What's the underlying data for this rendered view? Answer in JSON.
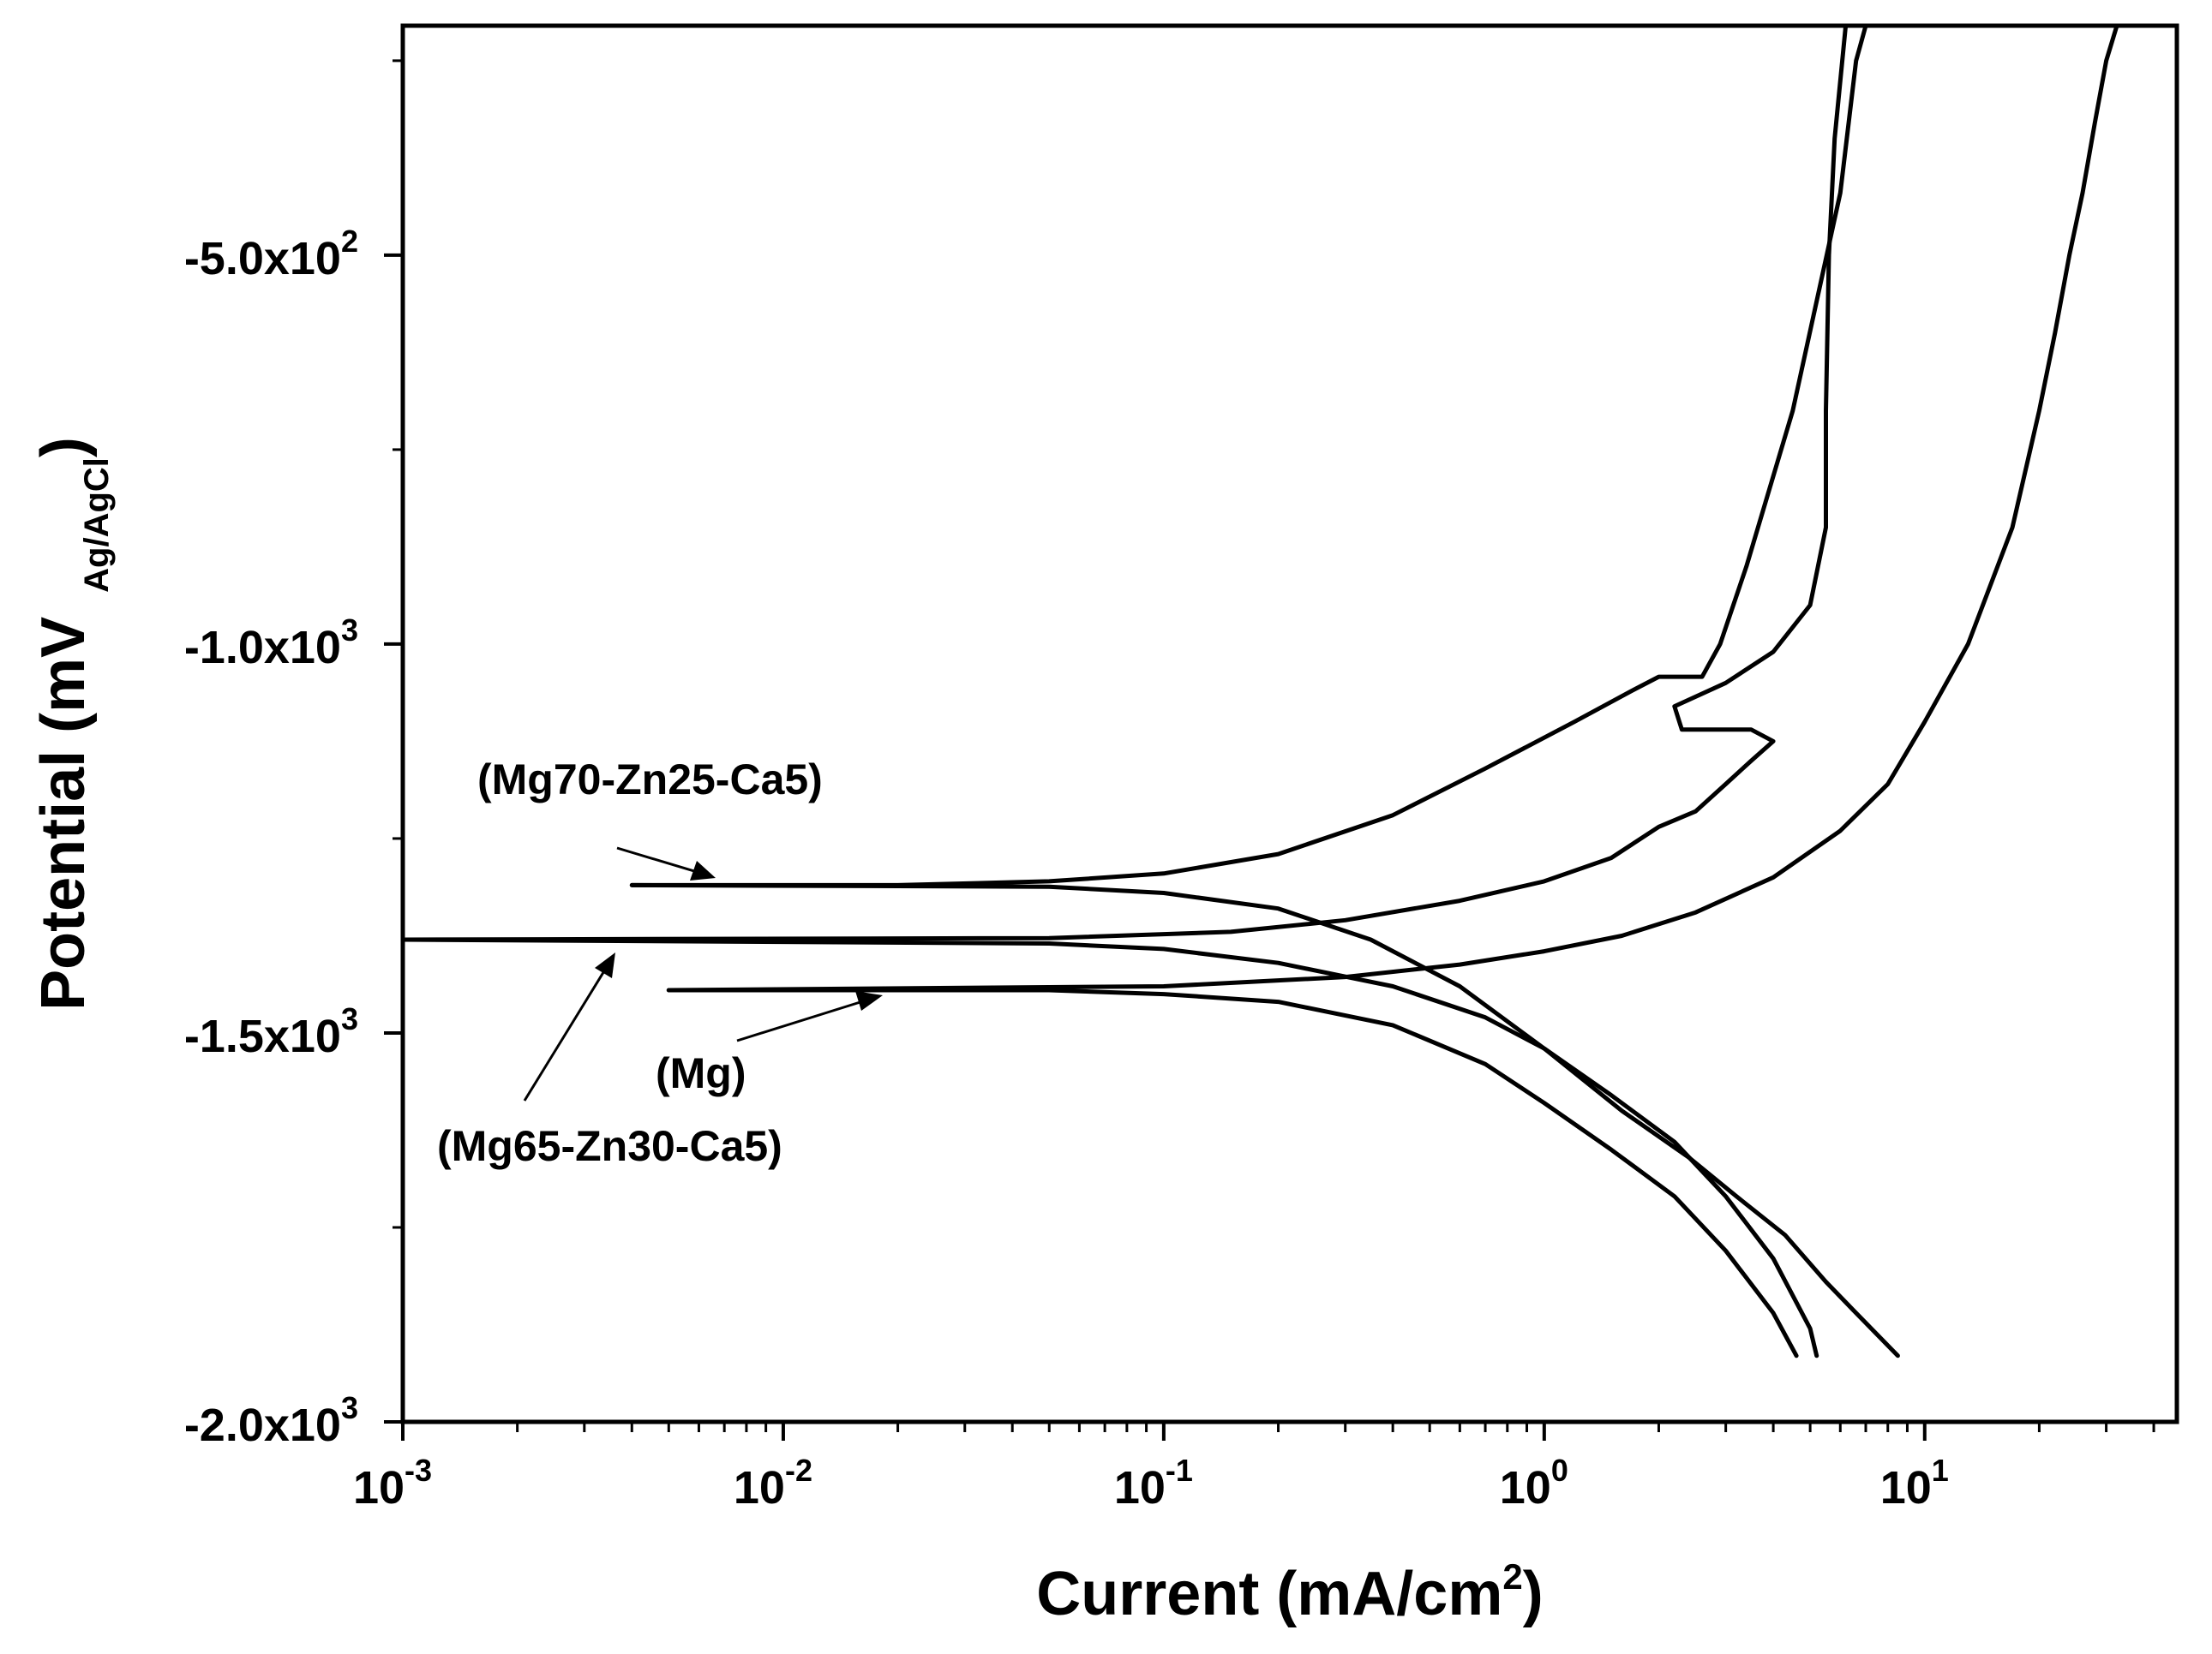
{
  "chart_data": {
    "type": "line",
    "title": "",
    "xlabel": "Current (mA/cm",
    "xlabel_sup": "2",
    "xlabel_end": ")",
    "ylabel": "Potential (mV",
    "ylabel_sub": "Ag/AgCl",
    "ylabel_end": ")",
    "xscale": "log",
    "xlim": [
      0.001,
      46
    ],
    "ylim": [
      -2000,
      -205
    ],
    "x_ticks": [
      {
        "value": 0.001,
        "base": "10",
        "exp": "-3"
      },
      {
        "value": 0.01,
        "base": "10",
        "exp": "-2"
      },
      {
        "value": 0.1,
        "base": "10",
        "exp": "-1"
      },
      {
        "value": 1,
        "base": "10",
        "exp": "0"
      },
      {
        "value": 10,
        "base": "10",
        "exp": "1"
      }
    ],
    "y_ticks": [
      {
        "value": -500,
        "mantissa": "-5.0x10",
        "exp": "2"
      },
      {
        "value": -1000,
        "mantissa": "-1.0x10",
        "exp": "3"
      },
      {
        "value": -1500,
        "mantissa": "-1.5x10",
        "exp": "3"
      },
      {
        "value": -2000,
        "mantissa": "-2.0x10",
        "exp": "3"
      }
    ],
    "y_minor_ticks": [
      -250,
      -750,
      -1250,
      -1750
    ],
    "grid": false,
    "legend": "none",
    "series": [
      {
        "name": "(Mg70-Zn25-Ca5)",
        "segments": [
          {
            "x": [
              0.004,
              0.02,
              0.05,
              0.1,
              0.2,
              0.4,
              0.7,
              1.2,
              1.7,
              2.0,
              2.2,
              2.6,
              2.9,
              3.4,
              4.5,
              6.0,
              6.6,
              7.0
            ],
            "y": [
              -1310,
              -1310,
              -1305,
              -1295,
              -1270,
              -1220,
              -1160,
              -1100,
              -1060,
              -1042,
              -1042,
              -1042,
              -1000,
              -900,
              -700,
              -420,
              -250,
              -205
            ]
          },
          {
            "x": [
              0.004,
              0.05,
              0.1,
              0.2,
              0.35,
              0.6,
              1.0,
              1.6,
              2.4,
              3.2,
              4.3,
              5.5,
              6.6,
              8.5
            ],
            "y": [
              -1310,
              -1312,
              -1320,
              -1340,
              -1380,
              -1440,
              -1520,
              -1600,
              -1660,
              -1710,
              -1760,
              -1820,
              -1860,
              -1915
            ]
          }
        ]
      },
      {
        "name": "(Mg65-Zn30-Ca5)",
        "segments": [
          {
            "x": [
              0.001,
              0.05,
              0.15,
              0.3,
              0.6,
              1.0,
              1.5,
              2.0,
              2.5,
              3.0,
              3.5,
              4.0,
              3.5,
              2.3,
              2.2,
              3.0,
              4.0,
              5.0,
              5.5,
              5.5,
              5.6,
              5.8,
              6.2
            ],
            "y": [
              -1380,
              -1378,
              -1370,
              -1355,
              -1330,
              -1305,
              -1275,
              -1235,
              -1215,
              -1180,
              -1150,
              -1125,
              -1110,
              -1110,
              -1080,
              -1050,
              -1010,
              -950,
              -850,
              -700,
              -500,
              -350,
              -205
            ]
          },
          {
            "x": [
              0.001,
              0.05,
              0.1,
              0.2,
              0.4,
              0.7,
              1.0,
              1.5,
              2.2,
              3.0,
              4.0,
              5.0,
              5.2
            ],
            "y": [
              -1380,
              -1385,
              -1392,
              -1410,
              -1440,
              -1480,
              -1520,
              -1580,
              -1640,
              -1710,
              -1790,
              -1880,
              -1915
            ]
          }
        ]
      },
      {
        "name": "(Mg)",
        "segments": [
          {
            "x": [
              0.005,
              0.1,
              0.3,
              0.6,
              1.0,
              1.6,
              2.5,
              4.0,
              6.0,
              8.0,
              10,
              13,
              17,
              20,
              22,
              24,
              26,
              28,
              30,
              32
            ],
            "y": [
              -1445,
              -1440,
              -1428,
              -1412,
              -1395,
              -1375,
              -1345,
              -1300,
              -1240,
              -1180,
              -1100,
              -1000,
              -850,
              -700,
              -600,
              -500,
              -420,
              -330,
              -250,
              -205
            ]
          },
          {
            "x": [
              0.005,
              0.05,
              0.1,
              0.2,
              0.4,
              0.7,
              1.0,
              1.5,
              2.2,
              3.0,
              4.0,
              4.6
            ],
            "y": [
              -1445,
              -1445,
              -1450,
              -1460,
              -1490,
              -1540,
              -1590,
              -1650,
              -1710,
              -1780,
              -1860,
              -1915
            ]
          }
        ]
      }
    ],
    "annotations": [
      {
        "text": "(Mg70-Zn25-Ca5)",
        "series": "(Mg70-Zn25-Ca5)"
      },
      {
        "text": "(Mg)",
        "series": "(Mg)"
      },
      {
        "text": "(Mg65-Zn30-Ca5)",
        "series": "(Mg65-Zn30-Ca5)"
      }
    ]
  }
}
